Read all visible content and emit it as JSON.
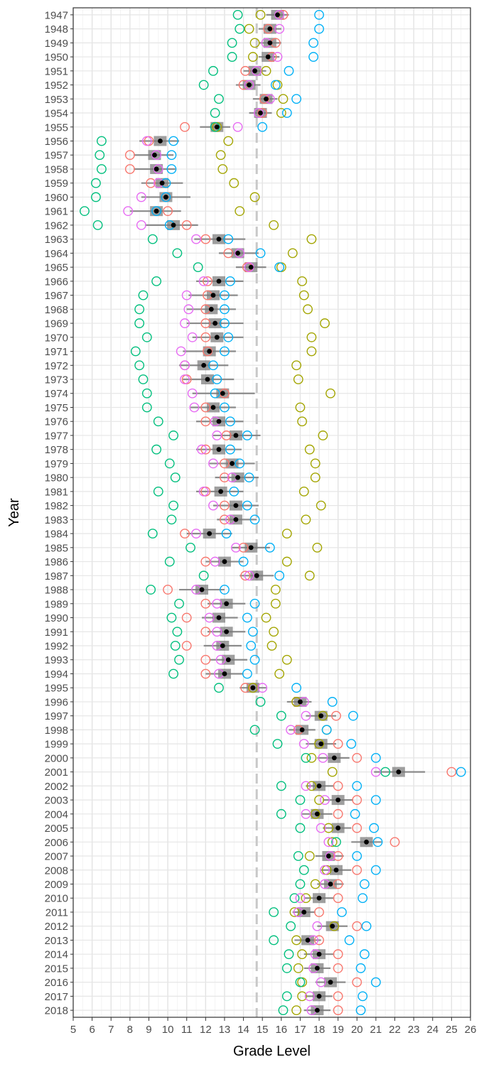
{
  "chart_data": {
    "type": "scatter",
    "title": "",
    "xlabel": "Grade Level",
    "ylabel": "Year",
    "xlim": [
      5,
      26
    ],
    "x_ticks": [
      "5",
      "6",
      "7",
      "8",
      "9",
      "10",
      "11",
      "12",
      "13",
      "14",
      "15",
      "16",
      "17",
      "18",
      "19",
      "20",
      "21",
      "22",
      "23",
      "24",
      "25",
      "26"
    ],
    "grid": true,
    "reference_line": {
      "x": 14.7,
      "style": "dashed"
    },
    "series_colors": {
      "s1": "#F8766D",
      "s2": "#A3A500",
      "s3": "#00BF7D",
      "s4": "#00B0F6",
      "s5": "#E76BF3"
    },
    "rows": [
      {
        "year": "1947",
        "mean": 15.8,
        "ci": [
          15.2,
          16.4
        ],
        "points": [
          16.1,
          14.9,
          13.7,
          18.0,
          15.9
        ]
      },
      {
        "year": "1948",
        "mean": 15.4,
        "ci": [
          14.8,
          16.0
        ],
        "points": [
          15.3,
          14.3,
          13.8,
          18.0,
          15.9
        ]
      },
      {
        "year": "1949",
        "mean": 15.4,
        "ci": [
          14.8,
          16.0
        ],
        "points": [
          15.7,
          14.6,
          13.4,
          17.7,
          15.2
        ]
      },
      {
        "year": "1950",
        "mean": 15.3,
        "ci": [
          14.8,
          15.9
        ],
        "points": [
          15.5,
          14.5,
          13.4,
          17.7,
          15.8
        ]
      },
      {
        "year": "1951",
        "mean": 14.6,
        "ci": [
          14.0,
          15.2
        ],
        "points": [
          14.1,
          15.2,
          12.4,
          16.4,
          14.7
        ]
      },
      {
        "year": "1952",
        "mean": 14.3,
        "ci": [
          13.6,
          14.9
        ],
        "points": [
          14.0,
          15.8,
          11.9,
          15.7,
          14.3
        ]
      },
      {
        "year": "1953",
        "mean": 15.2,
        "ci": [
          14.5,
          15.8
        ],
        "points": [
          15.1,
          16.1,
          12.7,
          16.8,
          15.4
        ]
      },
      {
        "year": "1954",
        "mean": 14.9,
        "ci": [
          14.3,
          15.5
        ],
        "points": [
          15.0,
          16.0,
          12.5,
          16.3,
          14.8
        ]
      },
      {
        "year": "1955",
        "mean": 12.6,
        "ci": [
          11.7,
          13.3
        ],
        "points": [
          10.9,
          12.6,
          12.5,
          15.0,
          13.7
        ]
      },
      {
        "year": "1956",
        "mean": 9.6,
        "ci": [
          8.5,
          10.6
        ],
        "points": [
          9.0,
          13.2,
          6.5,
          10.3,
          8.9
        ]
      },
      {
        "year": "1957",
        "mean": 9.3,
        "ci": [
          8.2,
          10.3
        ],
        "points": [
          8.0,
          12.8,
          6.4,
          10.2,
          9.4
        ]
      },
      {
        "year": "1958",
        "mean": 9.4,
        "ci": [
          8.2,
          10.4
        ],
        "points": [
          8.0,
          12.9,
          6.5,
          10.2,
          9.5
        ]
      },
      {
        "year": "1959",
        "mean": 9.7,
        "ci": [
          8.6,
          10.8
        ],
        "points": [
          9.1,
          13.5,
          6.2,
          9.9,
          9.5
        ]
      },
      {
        "year": "1960",
        "mean": 9.9,
        "ci": [
          8.6,
          11.2
        ],
        "points": [
          9.9,
          14.6,
          6.2,
          9.9,
          8.6
        ]
      },
      {
        "year": "1961",
        "mean": 9.4,
        "ci": [
          8.0,
          10.7
        ],
        "points": [
          10.0,
          13.8,
          5.6,
          9.4,
          7.9
        ]
      },
      {
        "year": "1962",
        "mean": 10.3,
        "ci": [
          8.8,
          11.6
        ],
        "points": [
          11.0,
          15.6,
          6.3,
          10.1,
          8.6
        ]
      },
      {
        "year": "1963",
        "mean": 12.7,
        "ci": [
          11.4,
          14.1
        ],
        "points": [
          12.0,
          17.6,
          9.2,
          13.2,
          11.5
        ]
      },
      {
        "year": "1964",
        "mean": 13.7,
        "ci": [
          12.7,
          14.8
        ],
        "points": [
          13.2,
          16.6,
          10.5,
          14.9,
          13.8
        ]
      },
      {
        "year": "1965",
        "mean": 14.4,
        "ci": [
          13.6,
          15.2
        ],
        "points": [
          14.2,
          16.0,
          11.6,
          15.9,
          14.3
        ]
      },
      {
        "year": "1966",
        "mean": 12.7,
        "ci": [
          11.5,
          14.0
        ],
        "points": [
          12.1,
          17.1,
          9.4,
          13.3,
          11.9
        ]
      },
      {
        "year": "1967",
        "mean": 12.4,
        "ci": [
          11.1,
          13.7
        ],
        "points": [
          12.1,
          17.2,
          8.7,
          13.0,
          11.0
        ]
      },
      {
        "year": "1968",
        "mean": 12.3,
        "ci": [
          11.0,
          13.6
        ],
        "points": [
          12.0,
          17.4,
          8.5,
          13.0,
          11.1
        ]
      },
      {
        "year": "1969",
        "mean": 12.5,
        "ci": [
          11.0,
          14.0
        ],
        "points": [
          12.0,
          18.3,
          8.5,
          13.0,
          10.9
        ]
      },
      {
        "year": "1970",
        "mean": 12.6,
        "ci": [
          11.3,
          14.0
        ],
        "points": [
          12.0,
          17.6,
          8.9,
          13.2,
          11.3
        ]
      },
      {
        "year": "1971",
        "mean": 12.2,
        "ci": [
          10.8,
          13.6
        ],
        "points": [
          12.1,
          17.6,
          8.3,
          13.0,
          10.7
        ]
      },
      {
        "year": "1972",
        "mean": 11.9,
        "ci": [
          10.6,
          13.2
        ],
        "points": [
          10.9,
          16.8,
          8.5,
          12.4,
          10.9
        ]
      },
      {
        "year": "1973",
        "mean": 12.1,
        "ci": [
          10.8,
          13.5
        ],
        "points": [
          11.0,
          16.9,
          8.7,
          12.6,
          10.9
        ]
      },
      {
        "year": "1974",
        "mean": 12.9,
        "ci": [
          11.3,
          14.6
        ],
        "points": [
          13.0,
          18.6,
          8.9,
          12.5,
          11.3
        ]
      },
      {
        "year": "1975",
        "mean": 12.4,
        "ci": [
          11.2,
          13.6
        ],
        "points": [
          12.0,
          17.0,
          8.9,
          13.0,
          11.4
        ]
      },
      {
        "year": "1976",
        "mean": 12.7,
        "ci": [
          11.5,
          14.0
        ],
        "points": [
          12.0,
          17.1,
          9.5,
          13.3,
          12.5
        ]
      },
      {
        "year": "1977",
        "mean": 13.6,
        "ci": [
          12.4,
          14.9
        ],
        "points": [
          13.1,
          18.2,
          10.3,
          14.2,
          12.6
        ]
      },
      {
        "year": "1978",
        "mean": 12.7,
        "ci": [
          11.5,
          13.9
        ],
        "points": [
          12.0,
          17.5,
          9.4,
          13.3,
          11.8
        ]
      },
      {
        "year": "1979",
        "mean": 13.4,
        "ci": [
          12.2,
          14.6
        ],
        "points": [
          13.0,
          17.8,
          10.1,
          13.8,
          12.4
        ]
      },
      {
        "year": "1980",
        "mean": 13.7,
        "ci": [
          12.5,
          14.8
        ],
        "points": [
          13.0,
          17.8,
          10.4,
          14.3,
          13.4
        ]
      },
      {
        "year": "1981",
        "mean": 12.8,
        "ci": [
          11.5,
          14.0
        ],
        "points": [
          12.0,
          17.2,
          9.5,
          13.5,
          11.9
        ]
      },
      {
        "year": "1982",
        "mean": 13.6,
        "ci": [
          12.4,
          14.8
        ],
        "points": [
          13.0,
          18.1,
          10.3,
          14.2,
          12.4
        ]
      },
      {
        "year": "1983",
        "mean": 13.6,
        "ci": [
          12.6,
          14.7
        ],
        "points": [
          13.0,
          17.3,
          10.2,
          14.6,
          13.3
        ]
      },
      {
        "year": "1984",
        "mean": 12.2,
        "ci": [
          11.0,
          13.4
        ],
        "points": [
          10.9,
          16.3,
          9.2,
          13.1,
          11.5
        ]
      },
      {
        "year": "1985",
        "mean": 14.4,
        "ci": [
          13.4,
          15.4
        ],
        "points": [
          14.0,
          17.9,
          11.2,
          15.4,
          13.6
        ]
      },
      {
        "year": "1986",
        "mean": 13.0,
        "ci": [
          12.0,
          14.0
        ],
        "points": [
          12.0,
          16.3,
          10.1,
          14.0,
          12.5
        ]
      },
      {
        "year": "1987",
        "mean": 14.7,
        "ci": [
          13.8,
          15.6
        ],
        "points": [
          14.1,
          17.5,
          11.9,
          15.9,
          14.3
        ]
      },
      {
        "year": "1988",
        "mean": 11.8,
        "ci": [
          10.6,
          13.0
        ],
        "points": [
          10.0,
          15.7,
          9.1,
          13.0,
          11.5
        ]
      },
      {
        "year": "1989",
        "mean": 13.1,
        "ci": [
          12.1,
          14.1
        ],
        "points": [
          12.0,
          15.7,
          10.6,
          14.6,
          12.6
        ]
      },
      {
        "year": "1990",
        "mean": 12.7,
        "ci": [
          11.8,
          13.7
        ],
        "points": [
          11.0,
          15.2,
          10.2,
          14.2,
          12.2
        ]
      },
      {
        "year": "1991",
        "mean": 13.1,
        "ci": [
          12.1,
          14.1
        ],
        "points": [
          12.0,
          15.6,
          10.5,
          14.5,
          12.6
        ]
      },
      {
        "year": "1992",
        "mean": 12.9,
        "ci": [
          11.9,
          13.9
        ],
        "points": [
          11.0,
          15.5,
          10.4,
          14.4,
          12.6
        ]
      },
      {
        "year": "1993",
        "mean": 13.2,
        "ci": [
          12.2,
          14.2
        ],
        "points": [
          12.0,
          16.3,
          10.6,
          14.6,
          12.8
        ]
      },
      {
        "year": "1994",
        "mean": 13.0,
        "ci": [
          12.0,
          14.0
        ],
        "points": [
          12.0,
          15.9,
          10.3,
          14.2,
          12.7
        ]
      },
      {
        "year": "1995",
        "mean": 14.5,
        "ci": [
          13.8,
          15.2
        ],
        "points": [
          14.1,
          14.5,
          12.7,
          16.8,
          15.0
        ]
      },
      {
        "year": "1996",
        "mean": 17.0,
        "ci": [
          16.3,
          17.6
        ],
        "points": [
          16.8,
          16.8,
          14.9,
          18.7,
          17.2
        ]
      },
      {
        "year": "1997",
        "mean": 18.1,
        "ci": [
          17.3,
          18.9
        ],
        "points": [
          18.9,
          18.2,
          16.0,
          19.8,
          17.3
        ]
      },
      {
        "year": "1998",
        "mean": 17.1,
        "ci": [
          16.4,
          17.8
        ],
        "points": [
          16.9,
          18.4,
          14.6,
          18.4,
          16.5
        ]
      },
      {
        "year": "1999",
        "mean": 18.1,
        "ci": [
          17.3,
          18.9
        ],
        "points": [
          19.0,
          18.0,
          15.8,
          19.7,
          17.2
        ]
      },
      {
        "year": "2000",
        "mean": 18.8,
        "ci": [
          17.9,
          19.6
        ],
        "points": [
          20.0,
          17.6,
          17.3,
          21.0,
          18.2
        ]
      },
      {
        "year": "2001",
        "mean": 22.2,
        "ci": [
          20.9,
          23.6
        ],
        "points": [
          25.0,
          18.7,
          21.5,
          25.5,
          21.0
        ]
      },
      {
        "year": "2002",
        "mean": 18.0,
        "ci": [
          17.3,
          18.8
        ],
        "points": [
          19.0,
          17.6,
          16.0,
          20.0,
          17.3
        ]
      },
      {
        "year": "2003",
        "mean": 19.0,
        "ci": [
          18.2,
          19.8
        ],
        "points": [
          20.0,
          18.0,
          17.0,
          21.0,
          18.3
        ]
      },
      {
        "year": "2004",
        "mean": 17.9,
        "ci": [
          17.1,
          18.7
        ],
        "points": [
          19.0,
          17.8,
          16.0,
          19.9,
          17.3
        ]
      },
      {
        "year": "2005",
        "mean": 19.0,
        "ci": [
          18.2,
          19.7
        ],
        "points": [
          20.0,
          18.5,
          17.0,
          20.9,
          18.1
        ]
      },
      {
        "year": "2006",
        "mean": 20.5,
        "ci": [
          19.7,
          21.3
        ],
        "points": [
          22.0,
          18.7,
          18.9,
          21.1,
          18.5
        ]
      },
      {
        "year": "2007",
        "mean": 18.5,
        "ci": [
          17.8,
          19.3
        ],
        "points": [
          19.0,
          17.5,
          16.9,
          20.0,
          18.6
        ]
      },
      {
        "year": "2008",
        "mean": 18.9,
        "ci": [
          18.1,
          19.7
        ],
        "points": [
          20.0,
          18.4,
          17.2,
          21.0,
          18.3
        ]
      },
      {
        "year": "2009",
        "mean": 18.6,
        "ci": [
          17.9,
          19.3
        ],
        "points": [
          19.0,
          17.8,
          17.0,
          20.4,
          18.3
        ]
      },
      {
        "year": "2010",
        "mean": 18.0,
        "ci": [
          17.2,
          18.8
        ],
        "points": [
          19.0,
          17.3,
          16.7,
          20.3,
          17.0
        ]
      },
      {
        "year": "2011",
        "mean": 17.2,
        "ci": [
          16.6,
          17.8
        ],
        "points": [
          18.0,
          16.7,
          15.6,
          19.2,
          16.9
        ]
      },
      {
        "year": "2012",
        "mean": 18.7,
        "ci": [
          17.9,
          19.5
        ],
        "points": [
          20.0,
          18.8,
          16.5,
          20.5,
          17.9
        ]
      },
      {
        "year": "2013",
        "mean": 17.4,
        "ci": [
          16.7,
          18.1
        ],
        "points": [
          18.0,
          16.8,
          15.6,
          19.6,
          17.7
        ]
      },
      {
        "year": "2014",
        "mean": 18.0,
        "ci": [
          17.2,
          18.8
        ],
        "points": [
          19.0,
          17.1,
          16.4,
          20.4,
          17.8
        ]
      },
      {
        "year": "2015",
        "mean": 17.9,
        "ci": [
          17.2,
          18.6
        ],
        "points": [
          19.0,
          16.9,
          16.3,
          20.2,
          17.7
        ]
      },
      {
        "year": "2016",
        "mean": 18.6,
        "ci": [
          17.8,
          19.4
        ],
        "points": [
          20.0,
          17.1,
          17.0,
          21.0,
          18.1
        ]
      },
      {
        "year": "2017",
        "mean": 18.0,
        "ci": [
          17.3,
          18.7
        ],
        "points": [
          19.0,
          17.1,
          16.3,
          20.3,
          17.5
        ]
      },
      {
        "year": "2018",
        "mean": 17.9,
        "ci": [
          17.2,
          18.6
        ],
        "points": [
          19.0,
          16.8,
          16.1,
          20.2,
          17.6
        ]
      }
    ]
  }
}
